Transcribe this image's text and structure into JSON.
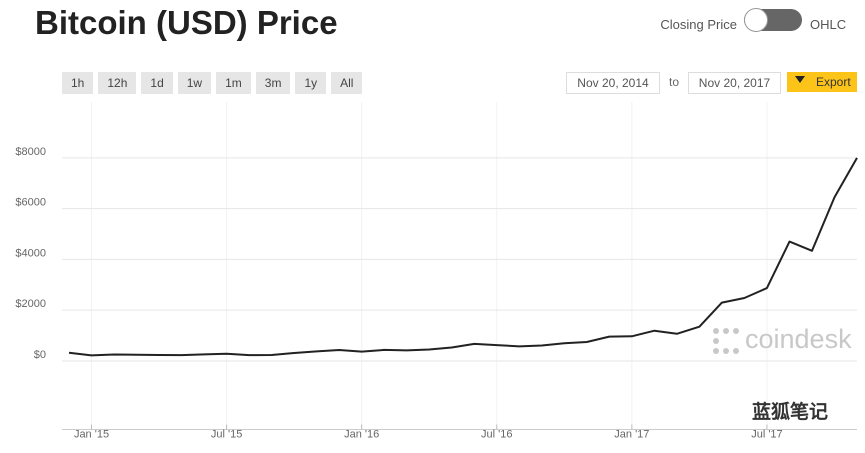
{
  "chart_data": {
    "type": "line",
    "title": "Bitcoin (USD) Price",
    "color": "#222222",
    "x": [
      "2014-12",
      "2015-01",
      "2015-02",
      "2015-03",
      "2015-04",
      "2015-05",
      "2015-06",
      "2015-07",
      "2015-08",
      "2015-09",
      "2015-10",
      "2015-11",
      "2015-12",
      "2016-01",
      "2016-02",
      "2016-03",
      "2016-04",
      "2016-05",
      "2016-06",
      "2016-07",
      "2016-08",
      "2016-09",
      "2016-10",
      "2016-11",
      "2016-12",
      "2017-01",
      "2017-02",
      "2017-03",
      "2017-04",
      "2017-05",
      "2017-06",
      "2017-07",
      "2017-08",
      "2017-09",
      "2017-10",
      "2017-11"
    ],
    "values": [
      320,
      220,
      255,
      245,
      235,
      230,
      260,
      285,
      230,
      235,
      315,
      375,
      430,
      370,
      435,
      415,
      450,
      530,
      670,
      625,
      575,
      610,
      700,
      745,
      960,
      970,
      1190,
      1070,
      1350,
      2300,
      2480,
      2870,
      4700,
      4340,
      6450,
      8000
    ],
    "ylim": [
      -2700,
      10200
    ],
    "yticks": [
      {
        "value": 0,
        "label": "$0"
      },
      {
        "value": 2000,
        "label": "$2000"
      },
      {
        "value": 4000,
        "label": "$4000"
      },
      {
        "value": 6000,
        "label": "$6000"
      },
      {
        "value": 8000,
        "label": "$8000"
      }
    ],
    "xticks": [
      {
        "value": "2015-01",
        "label": "Jan '15"
      },
      {
        "value": "2015-07",
        "label": "Jul '15"
      },
      {
        "value": "2016-01",
        "label": "Jan '16"
      },
      {
        "value": "2016-07",
        "label": "Jul '16"
      },
      {
        "value": "2017-01",
        "label": "Jan '17"
      },
      {
        "value": "2017-07",
        "label": "Jul '17"
      }
    ],
    "grid": true
  },
  "controls": {
    "mode_left": "Closing Price",
    "mode_right": "OHLC",
    "ranges": [
      "1h",
      "12h",
      "1d",
      "1w",
      "1m",
      "3m",
      "1y",
      "All"
    ],
    "date_from": "Nov 20, 2014",
    "date_to_label": "to",
    "date_to": "Nov 20, 2017",
    "export": "Export"
  },
  "watermarks": [
    "coindesk",
    "蓝狐笔记"
  ]
}
